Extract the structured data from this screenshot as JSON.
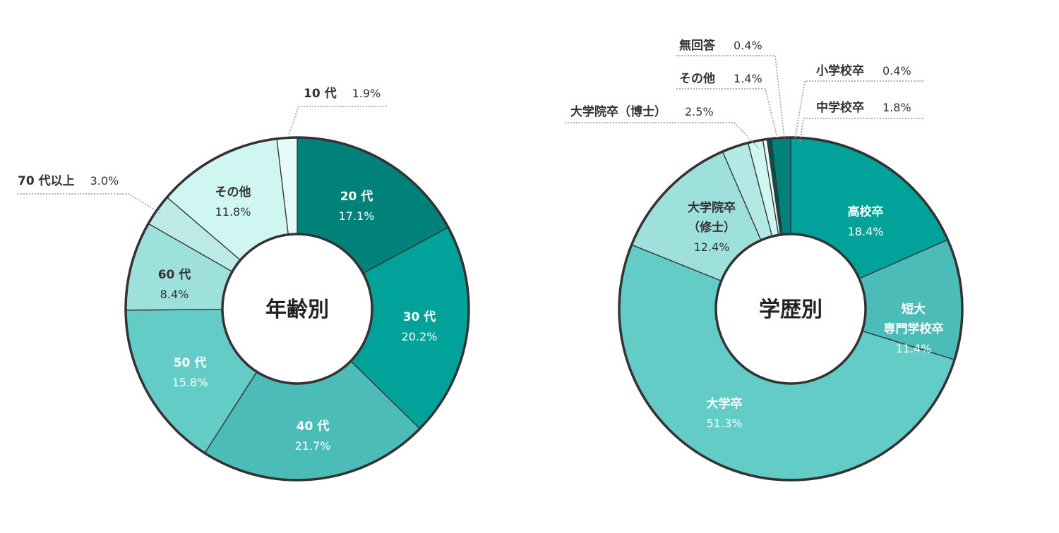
{
  "chart_data": [
    {
      "type": "pie",
      "title": "年齢別",
      "categories": [
        "20 代",
        "30 代",
        "40 代",
        "50 代",
        "60 代",
        "70 代以上",
        "その他",
        "10 代"
      ],
      "values": [
        17.1,
        20.2,
        21.7,
        15.8,
        8.4,
        3.0,
        11.8,
        1.9
      ],
      "value_labels": [
        "17.1%",
        "20.2%",
        "21.7%",
        "15.8%",
        "8.4%",
        "3.0%",
        "11.8%",
        "1.9%"
      ],
      "colors": [
        "#00827a",
        "#00a29a",
        "#4bbcb8",
        "#63ccc6",
        "#9de0dc",
        "#bde9e6",
        "#cff6f1",
        "#e6faf8"
      ],
      "label_colors": [
        "#ffffff",
        "#ffffff",
        "#ffffff",
        "#ffffff",
        "#333333",
        "#333333",
        "#333333",
        "#333333"
      ],
      "outside_labels": [
        5,
        7
      ]
    },
    {
      "type": "pie",
      "title": "学歴別",
      "categories": [
        "高校卒",
        "短大\n専門学校卒",
        "大学卒",
        "大学院卒\n（修士）",
        "大学院卒（博士）",
        "その他",
        "無回答",
        "小学校卒",
        "中学校卒"
      ],
      "values": [
        18.4,
        11.4,
        51.3,
        12.4,
        2.5,
        1.4,
        0.4,
        0.4,
        1.8
      ],
      "value_labels": [
        "18.4%",
        "11.4%",
        "51.3%",
        "12.4%",
        "2.5%",
        "1.4%",
        "0.4%",
        "0.4%",
        "1.8%"
      ],
      "colors": [
        "#00a29a",
        "#4bbcb8",
        "#63ccc6",
        "#9de0dc",
        "#b3e8e4",
        "#cff6f1",
        "#e6faf8",
        "#0a4f4a",
        "#00827a"
      ],
      "label_colors": [
        "#ffffff",
        "#ffffff",
        "#ffffff",
        "#333333",
        "#333333",
        "#333333",
        "#333333",
        "#333333",
        "#333333"
      ],
      "outside_labels": [
        4,
        5,
        6,
        7,
        8
      ]
    }
  ]
}
